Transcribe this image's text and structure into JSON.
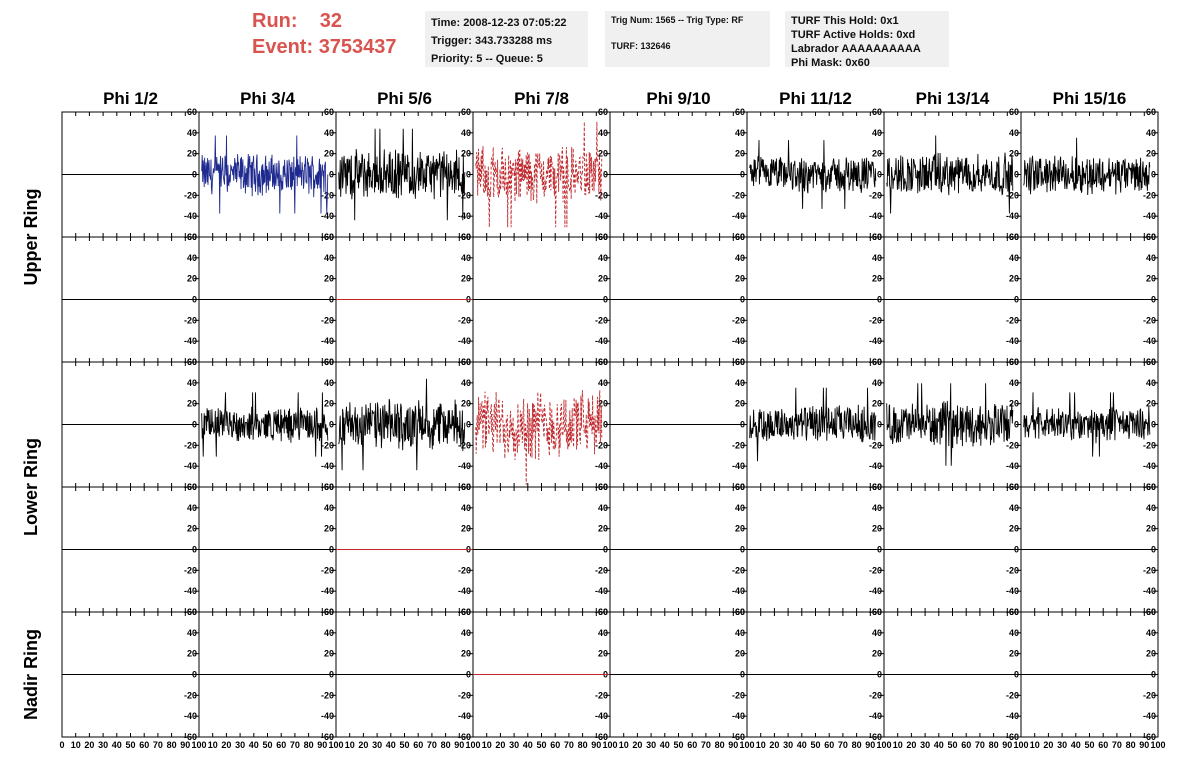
{
  "header": {
    "run_label": "Run:",
    "run_value": "32",
    "event_label": "Event:",
    "event_value": "3753437",
    "colors": {
      "accent": "#d9534f",
      "panel_bg": "#f0f0f0"
    }
  },
  "info_boxes": {
    "time": "Time: 2008-12-23 07:05:22",
    "trigger": "Trigger: 343.733288 ms",
    "priority": "Priority: 5 -- Queue: 5",
    "trig_num": "Trig Num: 1565 -- Trig Type: RF",
    "turf": "TURF: 132646",
    "turf_this_hold": "TURF This Hold: 0x1",
    "turf_active_holds": "TURF Active Holds: 0xd",
    "labrador": "Labrador AAAAAAAAAA",
    "phi_mask": "Phi Mask: 0x60"
  },
  "chart_data": {
    "type": "line",
    "columns": [
      "Phi 1/2",
      "Phi 3/4",
      "Phi 5/6",
      "Phi 7/8",
      "Phi 9/10",
      "Phi 11/12",
      "Phi 13/14",
      "Phi 15/16"
    ],
    "rings": [
      {
        "label": "Upper Ring",
        "rows": [
          0,
          1
        ]
      },
      {
        "label": "Lower Ring",
        "rows": [
          2,
          3
        ]
      },
      {
        "label": "Nadir Ring",
        "rows": [
          4
        ]
      }
    ],
    "xlim": [
      0,
      100
    ],
    "ylim": [
      -60,
      60
    ],
    "x_ticks": [
      0,
      10,
      20,
      30,
      40,
      50,
      60,
      70,
      80,
      90,
      100
    ],
    "y_ticks": [
      -60,
      -40,
      -20,
      0,
      20,
      40,
      60
    ],
    "panels": [
      [
        {
          "style": "flat",
          "color": "#000000"
        },
        {
          "style": "noise",
          "color": "#1f2a8f",
          "amp": 17
        },
        {
          "style": "noise",
          "color": "#000000",
          "amp": 20
        },
        {
          "style": "noise",
          "color": "#c0282d",
          "amp": 23,
          "dashed": true
        },
        {
          "style": "flat",
          "color": "#000000"
        },
        {
          "style": "noise",
          "color": "#000000",
          "amp": 15
        },
        {
          "style": "noise",
          "color": "#000000",
          "amp": 17
        },
        {
          "style": "noise",
          "color": "#000000",
          "amp": 16
        }
      ],
      [
        {
          "style": "flat",
          "color": "#000000"
        },
        {
          "style": "flat",
          "color": "#000000"
        },
        {
          "style": "flat",
          "color": "#c0282d"
        },
        {
          "style": "flat",
          "color": "#000000"
        },
        {
          "style": "flat",
          "color": "#000000"
        },
        {
          "style": "flat",
          "color": "#000000"
        },
        {
          "style": "flat",
          "color": "#000000"
        },
        {
          "style": "flat",
          "color": "#000000"
        }
      ],
      [
        {
          "style": "flat",
          "color": "#000000"
        },
        {
          "style": "noise",
          "color": "#000000",
          "amp": 14
        },
        {
          "style": "noise",
          "color": "#000000",
          "amp": 20
        },
        {
          "style": "noise",
          "color": "#c0282d",
          "amp": 28,
          "dashed": true
        },
        {
          "style": "flat",
          "color": "#000000"
        },
        {
          "style": "noise",
          "color": "#000000",
          "amp": 16
        },
        {
          "style": "noise",
          "color": "#000000",
          "amp": 18
        },
        {
          "style": "noise",
          "color": "#000000",
          "amp": 14
        }
      ],
      [
        {
          "style": "flat",
          "color": "#000000"
        },
        {
          "style": "flat",
          "color": "#000000"
        },
        {
          "style": "flat",
          "color": "#c0282d"
        },
        {
          "style": "flat",
          "color": "#000000"
        },
        {
          "style": "flat",
          "color": "#000000"
        },
        {
          "style": "flat",
          "color": "#000000"
        },
        {
          "style": "flat",
          "color": "#000000"
        },
        {
          "style": "flat",
          "color": "#000000"
        }
      ],
      [
        {
          "style": "flat",
          "color": "#000000"
        },
        {
          "style": "flat",
          "color": "#000000"
        },
        {
          "style": "flat",
          "color": "#000000"
        },
        {
          "style": "flat",
          "color": "#c0282d"
        },
        {
          "style": "flat",
          "color": "#000000"
        },
        {
          "style": "flat",
          "color": "#000000"
        },
        {
          "style": "flat",
          "color": "#000000"
        },
        {
          "style": "flat",
          "color": "#000000"
        }
      ]
    ]
  }
}
